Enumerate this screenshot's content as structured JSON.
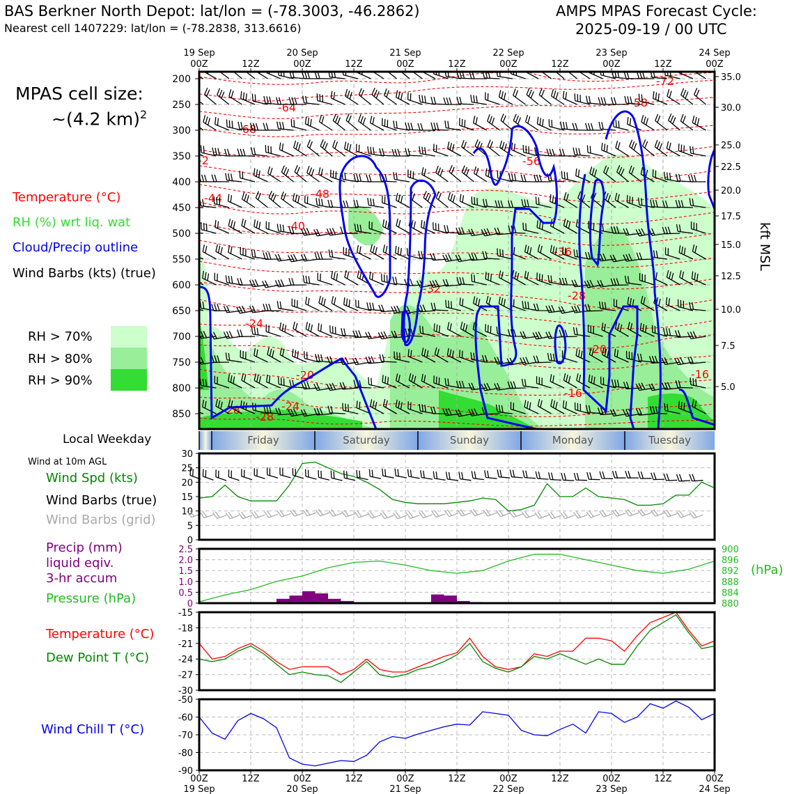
{
  "header": {
    "station": "BAS Berkner North Depot: lat/lon = (-78.3003, -46.2862)",
    "nearest": "Nearest cell 1407229: lat/lon = (-78.2838, 313.6616)",
    "cycle_line1": "AMPS MPAS Forecast Cycle:",
    "cycle_line2": "2025-09-19 / 00 UTC"
  },
  "left_panel": {
    "cell_size_line1": "MPAS cell size:",
    "cell_size_line2": "~(4.2 km)",
    "cell_size_sup": "2",
    "legend_temperature": "Temperature (°C)",
    "legend_rh": "RH (%) wrt liq. wat",
    "legend_cloud": "Cloud/Precip outline",
    "legend_wind": "Wind Barbs (kts) (true)",
    "rh70": "RH > 70%",
    "rh80": "RH > 80%",
    "rh90": "RH > 90%",
    "local_weekday": "Local Weekday",
    "wind_10m": "Wind at 10m AGL",
    "wind_spd": "Wind Spd (kts)",
    "wind_barbs_true": "Wind Barbs (true)",
    "wind_barbs_grid": "Wind Barbs (grid)",
    "precip_1": "Precip (mm)",
    "precip_2": "liquid eqiv.",
    "precip_3": "3-hr accum",
    "pressure": "Pressure (hPa)",
    "temperature": "Temperature (°C)",
    "dewpoint": "Dew Point T (°C)",
    "windchill": "Wind Chill T (°C)",
    "hpa_unit": "(hPa)",
    "kft_label": "kft MSL"
  },
  "colors": {
    "temperature": "#ff0000",
    "rh_label": "#33dd33",
    "cloud": "#0000ee",
    "wind_speed": "#008800",
    "precip": "#800080",
    "pressure": "#22bb22",
    "dewpoint": "#008800",
    "windchill": "#0000ee",
    "rh70": "#ccffcc",
    "rh80": "#99ee99",
    "rh90": "#33dd33"
  },
  "time_axis": {
    "top_ticks": [
      {
        "l1": "19 Sep",
        "l2": "00Z"
      },
      {
        "l1": "",
        "l2": "12Z"
      },
      {
        "l1": "20 Sep",
        "l2": "00Z"
      },
      {
        "l1": "",
        "l2": "12Z"
      },
      {
        "l1": "21 Sep",
        "l2": "00Z"
      },
      {
        "l1": "",
        "l2": "12Z"
      },
      {
        "l1": "22 Sep",
        "l2": "00Z"
      },
      {
        "l1": "",
        "l2": "12Z"
      },
      {
        "l1": "23 Sep",
        "l2": "00Z"
      },
      {
        "l1": "",
        "l2": "12Z"
      },
      {
        "l1": "24 Sep",
        "l2": "00Z"
      }
    ],
    "weekdays": [
      "Friday",
      "Saturday",
      "Sunday",
      "Monday",
      "Tuesday"
    ]
  },
  "chart_data": [
    {
      "type": "heatmap",
      "name": "cross-section",
      "x_hours": [
        0,
        120
      ],
      "yticks_hpa": [
        "200",
        "250",
        "300",
        "350",
        "400",
        "450",
        "500",
        "550",
        "600",
        "650",
        "700",
        "750",
        "800",
        "850"
      ],
      "kft_ticks": [
        "35.0",
        "30.0",
        "25.0",
        "22.5",
        "20.0",
        "17.5",
        "15.0",
        "12.5",
        "10.0",
        "7.5",
        "5.0"
      ],
      "temperature_labels": [
        "-72",
        "-64",
        "-68",
        "-56",
        "-58",
        "-44",
        "-48",
        "-40",
        "-36",
        "-32",
        "-28",
        "-24",
        "-20",
        "-20",
        "-24",
        "-28",
        "-28",
        "-16",
        "-16",
        "-2"
      ]
    },
    {
      "type": "line",
      "name": "wind speed 10m",
      "ylim": [
        0,
        30
      ],
      "yticks": [
        "0",
        "5",
        "10",
        "15",
        "20",
        "25",
        "30"
      ],
      "x": [
        0,
        3,
        6,
        9,
        12,
        15,
        18,
        21,
        24,
        27,
        30,
        33,
        36,
        39,
        42,
        45,
        48,
        51,
        54,
        57,
        60,
        63,
        66,
        69,
        72,
        75,
        78,
        81,
        84,
        87,
        90,
        93,
        96,
        99,
        102,
        105,
        108,
        111,
        114,
        117,
        120
      ],
      "values": [
        14.5,
        15,
        19,
        15,
        13.5,
        13.5,
        13.5,
        19,
        26.5,
        27,
        25,
        23,
        22,
        20,
        17.5,
        14,
        13,
        12.5,
        12.5,
        12.5,
        13,
        13.5,
        14.5,
        14,
        10,
        10.5,
        12,
        19.5,
        15,
        15,
        18,
        15,
        14.5,
        14,
        12,
        12,
        12.5,
        15.5,
        15.5,
        20,
        18
      ]
    },
    {
      "type": "bar",
      "name": "precip 3hr",
      "ylim": [
        0,
        2.5
      ],
      "yticks": [
        "0",
        "0.5",
        "1.0",
        "1.5",
        "2.0",
        "2.5"
      ],
      "x": [
        21,
        24,
        27,
        30,
        33,
        36,
        57,
        60,
        63,
        66
      ],
      "values": [
        0.2,
        0.35,
        0.55,
        0.45,
        0.2,
        0.1,
        0.4,
        0.35,
        0.1,
        0.05
      ]
    },
    {
      "type": "line",
      "name": "pressure",
      "ylim": [
        880,
        900
      ],
      "yticks": [
        "880",
        "884",
        "888",
        "892",
        "896",
        "900"
      ],
      "x": [
        0,
        6,
        12,
        18,
        24,
        30,
        36,
        42,
        48,
        54,
        60,
        66,
        72,
        78,
        84,
        90,
        96,
        102,
        108,
        114,
        120
      ],
      "values": [
        880.5,
        883,
        885,
        888,
        890,
        893,
        895,
        895.5,
        894,
        892,
        891,
        892,
        895.5,
        898,
        898,
        896,
        894,
        892,
        891,
        892.5,
        895.5
      ]
    },
    {
      "type": "line",
      "name": "temperature and dew point",
      "ylim": [
        -30,
        -15
      ],
      "yticks": [
        "-15",
        "-18",
        "-21",
        "-24",
        "-27",
        "-30"
      ],
      "x": [
        0,
        3,
        6,
        9,
        12,
        15,
        18,
        21,
        24,
        27,
        30,
        33,
        36,
        39,
        42,
        45,
        48,
        51,
        54,
        57,
        60,
        63,
        66,
        69,
        72,
        75,
        78,
        81,
        84,
        87,
        90,
        93,
        96,
        99,
        102,
        105,
        108,
        111,
        114,
        117,
        120
      ],
      "series": [
        {
          "key": "temp",
          "values": [
            -21,
            -24,
            -23.5,
            -22,
            -21,
            -22.5,
            -24.5,
            -26,
            -25.5,
            -25.5,
            -25.5,
            -27,
            -26,
            -24,
            -26,
            -26.5,
            -26.5,
            -25.5,
            -24.5,
            -23.5,
            -22.8,
            -20,
            -23.5,
            -25.5,
            -26,
            -25.5,
            -23,
            -23.5,
            -22.5,
            -22.5,
            -20,
            -20,
            -20.5,
            -22.5,
            -19.5,
            -17,
            -16,
            -15,
            -18.5,
            -21.5,
            -20.5
          ]
        },
        {
          "key": "dewpoint",
          "values": [
            -24,
            -24.5,
            -24,
            -22.5,
            -21.5,
            -23,
            -25,
            -27,
            -26.5,
            -27,
            -27.2,
            -28.5,
            -26.5,
            -24.5,
            -27,
            -27.5,
            -27,
            -26,
            -25.5,
            -24.5,
            -23.2,
            -21,
            -24.5,
            -25.8,
            -26.5,
            -25.5,
            -23.5,
            -24,
            -23,
            -24,
            -25,
            -24,
            -25,
            -25,
            -21.5,
            -18.5,
            -17,
            -15.5,
            -19,
            -22,
            -21.5
          ]
        }
      ]
    },
    {
      "type": "line",
      "name": "wind chill",
      "ylim": [
        -90,
        -50
      ],
      "yticks": [
        "-50",
        "-60",
        "-70",
        "-80",
        "-90"
      ],
      "x": [
        0,
        3,
        6,
        9,
        12,
        15,
        18,
        21,
        24,
        27,
        30,
        33,
        36,
        39,
        42,
        45,
        48,
        51,
        54,
        57,
        60,
        63,
        66,
        69,
        72,
        75,
        78,
        81,
        84,
        87,
        90,
        93,
        96,
        99,
        102,
        105,
        108,
        111,
        114,
        117,
        120
      ],
      "values": [
        -60,
        -69,
        -72.5,
        -62,
        -58,
        -61,
        -66,
        -83,
        -86.5,
        -87.5,
        -86,
        -84.5,
        -85,
        -81.5,
        -74,
        -71,
        -72,
        -69.5,
        -67.5,
        -65.5,
        -64,
        -64.5,
        -57,
        -58,
        -59,
        -67.5,
        -70,
        -70.5,
        -67,
        -64,
        -69,
        -57,
        -58,
        -63,
        -60,
        -52.5,
        -55,
        -51,
        -54.5,
        -61.5,
        -58
      ]
    }
  ]
}
